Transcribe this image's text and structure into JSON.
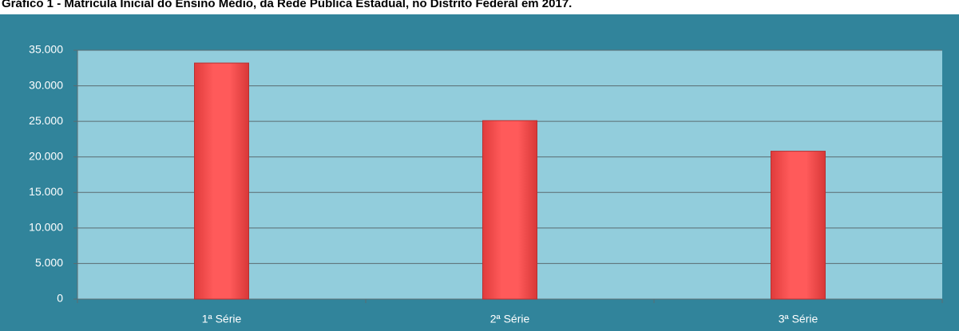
{
  "chart_data": {
    "type": "bar",
    "title": "Gráfico 1 - Matrícula Inicial do Ensino Médio, da Rede Pública Estadual, no Distrito Federal em 2017.",
    "categories": [
      "1ª Série",
      "2ª Série",
      "3ª Série"
    ],
    "values": [
      33200,
      25100,
      20800
    ],
    "color": "#ff5050",
    "ylim": [
      0,
      35000
    ],
    "yticks": [
      0,
      {
        "value": 5000,
        "label": "5.000"
      },
      {
        "value": 10000,
        "label": "10.000"
      },
      {
        "value": 15000,
        "label": "15.000"
      },
      {
        "value": 20000,
        "label": "20.000"
      },
      {
        "value": 25000,
        "label": "25.000"
      },
      {
        "value": 30000,
        "label": "30.000"
      },
      {
        "value": 35000,
        "label": "35.000"
      }
    ],
    "grid": true
  }
}
